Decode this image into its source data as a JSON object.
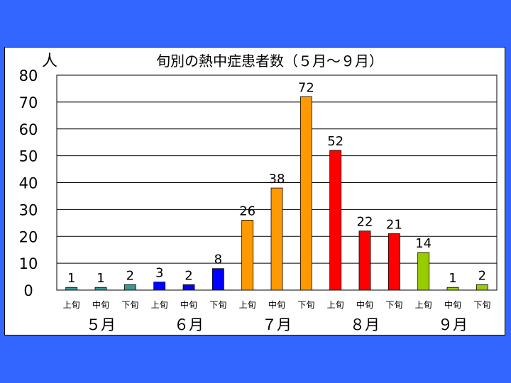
{
  "chart_data": {
    "type": "bar",
    "title": "旬別の熱中症患者数（５月～９月）",
    "ylabel": "人",
    "ylim": [
      0,
      80
    ],
    "yticks": [
      0,
      10,
      20,
      30,
      40,
      50,
      60,
      70,
      80
    ],
    "grid": true,
    "categories": [
      "上旬",
      "中旬",
      "下旬",
      "上旬",
      "中旬",
      "下旬",
      "上旬",
      "中旬",
      "下旬",
      "上旬",
      "中旬",
      "下旬",
      "上旬",
      "中旬",
      "下旬"
    ],
    "values": [
      1,
      1,
      2,
      3,
      2,
      8,
      26,
      38,
      72,
      52,
      22,
      21,
      14,
      1,
      2
    ],
    "month_groups": [
      "５月",
      "６月",
      "７月",
      "８月",
      "９月"
    ],
    "colors": [
      "#339999",
      "#339999",
      "#339999",
      "#0000ff",
      "#0000ff",
      "#0000ff",
      "#ff9900",
      "#ff9900",
      "#ff9900",
      "#ff0000",
      "#ff0000",
      "#ff0000",
      "#99cc00",
      "#99cc00",
      "#99cc00"
    ]
  }
}
